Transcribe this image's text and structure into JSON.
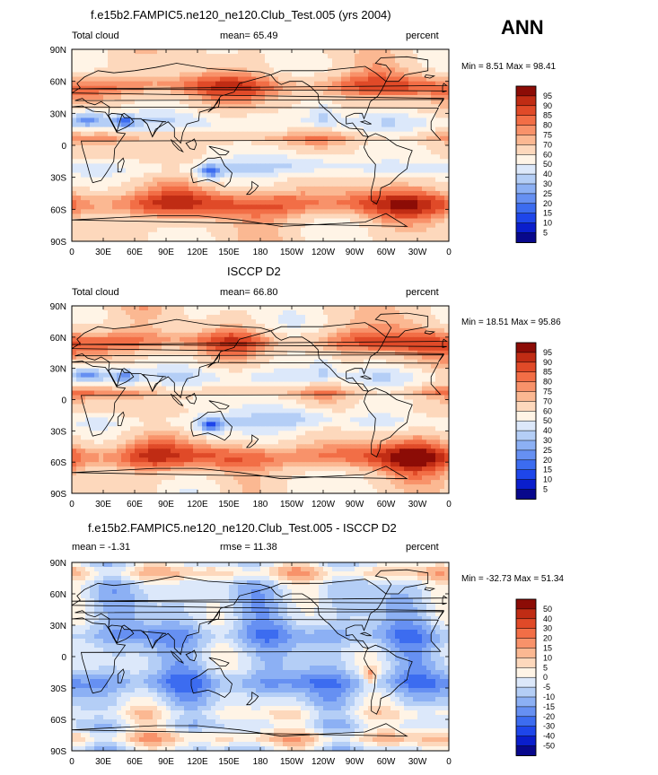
{
  "season": "ANN",
  "x_ticks": [
    "0",
    "30E",
    "60E",
    "90E",
    "120E",
    "150E",
    "180",
    "150W",
    "120W",
    "90W",
    "60W",
    "30W",
    "0"
  ],
  "y_ticks": [
    "90N",
    "60N",
    "30N",
    "0",
    "30S",
    "60S",
    "90S"
  ],
  "colors": {
    "abs_scale": [
      "#08088c",
      "#0a1ecc",
      "#1e46ea",
      "#3c6cf0",
      "#6690f2",
      "#8cb0f4",
      "#b4cef6",
      "#dce8fa",
      "#fff4e6",
      "#fdd8bc",
      "#fbb892",
      "#f8926a",
      "#f26e46",
      "#e04a28",
      "#c02c14",
      "#8c0c06"
    ],
    "diff_scale": [
      "#08088c",
      "#0a1ecc",
      "#1e46ea",
      "#3c6cf0",
      "#6690f2",
      "#8cb0f4",
      "#b4cef6",
      "#dce8fa",
      "#fff4e6",
      "#fdd8bc",
      "#fbb892",
      "#f8926a",
      "#f26e46",
      "#e04a28",
      "#c02c14",
      "#8c0c06"
    ]
  },
  "panels": [
    {
      "title": "f.e15b2.FAMPIC5.ne120_ne120.Club_Test.005 (yrs 2004)",
      "left_label": "Total cloud",
      "mid_label": "mean=  65.49",
      "right_label": "percent",
      "minmax": "Min =   8.51  Max =   98.41",
      "levels": [
        "95",
        "90",
        "85",
        "80",
        "75",
        "70",
        "60",
        "50",
        "40",
        "30",
        "25",
        "20",
        "15",
        "10",
        "5"
      ]
    },
    {
      "title": "ISCCP D2",
      "left_label": "Total cloud",
      "mid_label": "mean=  66.80",
      "right_label": "percent",
      "minmax": "Min =  18.51  Max =  95.86",
      "levels": [
        "95",
        "90",
        "85",
        "80",
        "75",
        "70",
        "60",
        "50",
        "40",
        "30",
        "25",
        "20",
        "15",
        "10",
        "5"
      ]
    },
    {
      "title": "f.e15b2.FAMPIC5.ne120_ne120.Club_Test.005 - ISCCP D2",
      "left_label": "mean =  -1.31",
      "mid_label": "rmse =  11.38",
      "right_label": "percent",
      "minmax": "Min = -32.73  Max =  51.34",
      "levels": [
        "50",
        "40",
        "30",
        "20",
        "15",
        "10",
        "5",
        "0",
        "-5",
        "-10",
        "-15",
        "-20",
        "-30",
        "-40",
        "-50"
      ]
    }
  ]
}
